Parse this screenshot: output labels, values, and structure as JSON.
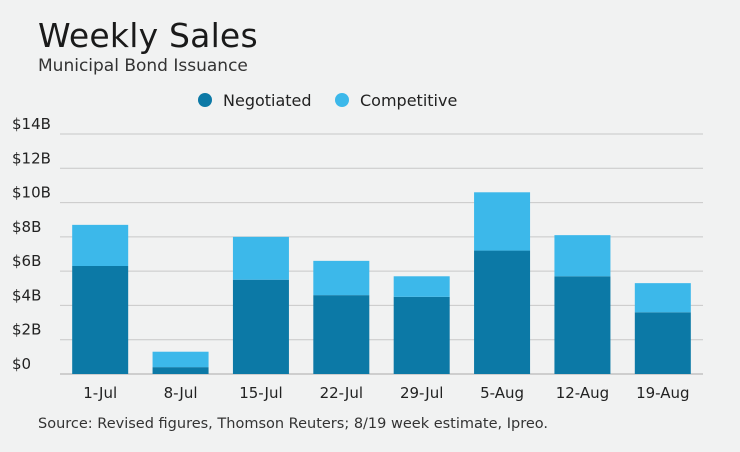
{
  "title": "Weekly Sales",
  "subtitle": "Municipal Bond Issuance",
  "source": "Source: Revised figures, Thomson Reuters; 8/19 week estimate, Ipreo.",
  "colors": {
    "negotiated": "#0c79a6",
    "competitive": "#3cb8ea",
    "grid": "#c8c8c8",
    "axis": "#aaaaaa"
  },
  "chart_data": {
    "type": "bar",
    "stacked": true,
    "title": "Weekly Sales",
    "subtitle": "Municipal Bond Issuance",
    "categories": [
      "1-Jul",
      "8-Jul",
      "15-Jul",
      "22-Jul",
      "29-Jul",
      "5-Aug",
      "12-Aug",
      "19-Aug"
    ],
    "series": [
      {
        "name": "Negotiated",
        "values": [
          6.3,
          0.4,
          5.5,
          4.6,
          4.5,
          7.2,
          5.7,
          3.6
        ]
      },
      {
        "name": "Competitive",
        "values": [
          2.4,
          0.9,
          2.5,
          2.0,
          1.2,
          3.4,
          2.4,
          1.7
        ]
      }
    ],
    "ylim": [
      0,
      14
    ],
    "yticks": [
      0,
      2,
      4,
      6,
      8,
      10,
      12,
      14
    ],
    "ytick_labels": [
      "$0",
      "$2B",
      "$4B",
      "$6B",
      "$8B",
      "$10B",
      "$12B",
      "$14B"
    ],
    "grid": true,
    "legend_position": "top-center"
  }
}
